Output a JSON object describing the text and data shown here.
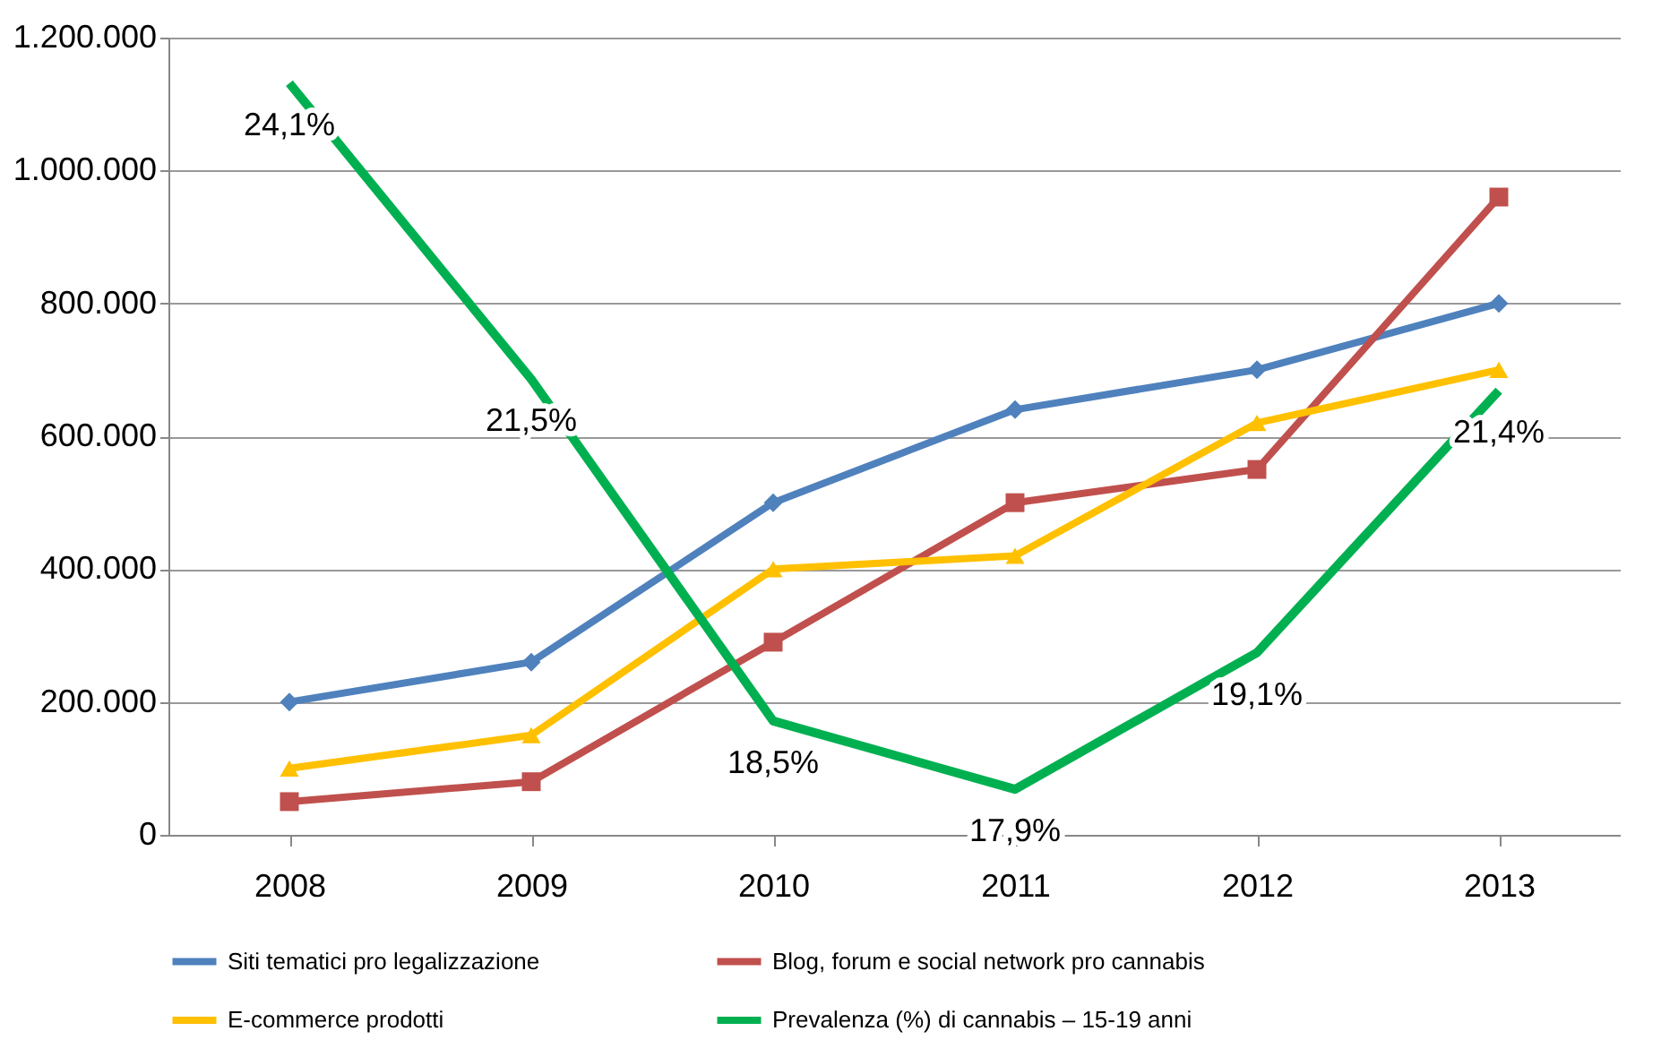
{
  "chart_data": {
    "type": "line",
    "categories": [
      "2008",
      "2009",
      "2010",
      "2011",
      "2012",
      "2013"
    ],
    "ylim": [
      0,
      1200000
    ],
    "yticks": [
      {
        "value": 0,
        "label": "0"
      },
      {
        "value": 200000,
        "label": "200.000"
      },
      {
        "value": 400000,
        "label": "400.000"
      },
      {
        "value": 600000,
        "label": "600.000"
      },
      {
        "value": 800000,
        "label": "800.000"
      },
      {
        "value": 1000000,
        "label": "1.000.000"
      },
      {
        "value": 1200000,
        "label": "1.200.000"
      }
    ],
    "grid": "y",
    "legend": "bottom",
    "line_style": "solid",
    "series": [
      {
        "name": "Siti tematici pro legalizzazione",
        "color": "#4f81bd",
        "marker": "diamond",
        "values": [
          200000,
          260000,
          500000,
          640000,
          700000,
          800000
        ]
      },
      {
        "name": "Blog, forum e social network pro cannabis",
        "color": "#c0504d",
        "marker": "square",
        "values": [
          50000,
          80000,
          290000,
          500000,
          550000,
          960000
        ]
      },
      {
        "name": "E-commerce prodotti",
        "color": "#ffc000",
        "marker": "triangle",
        "values": [
          100000,
          150000,
          400000,
          420000,
          620000,
          700000
        ]
      },
      {
        "name": "Prevalenza (%) di cannabis  – 15-19 anni",
        "color": "#00b050",
        "marker": "none",
        "axis": "y2",
        "values": [
          24.1,
          21.5,
          18.5,
          17.9,
          19.1,
          21.4
        ],
        "value_labels": [
          "24,1%",
          "21,5%",
          "18,5%",
          "17,9%",
          "19,1%",
          "21,4%"
        ]
      }
    ]
  }
}
